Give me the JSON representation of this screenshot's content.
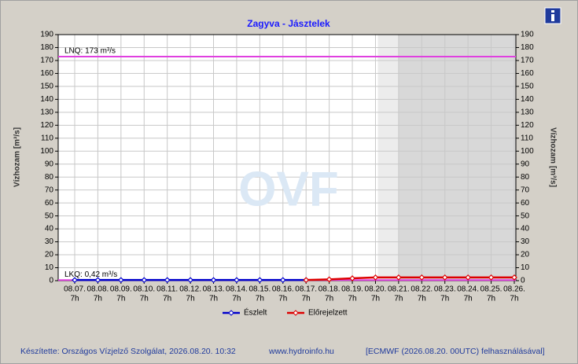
{
  "chart_data": {
    "type": "line",
    "title": "Zagyva - Jásztelek",
    "ylabel": "Vízhozam [m³/s]",
    "y2label": "Vízhozam [m³/s]",
    "categories": [
      [
        "08.07.",
        "7h"
      ],
      [
        "08.08.",
        "7h"
      ],
      [
        "08.09.",
        "7h"
      ],
      [
        "08.10.",
        "7h"
      ],
      [
        "08.11.",
        "7h"
      ],
      [
        "08.12.",
        "7h"
      ],
      [
        "08.13.",
        "7h"
      ],
      [
        "08.14.",
        "7h"
      ],
      [
        "08.15.",
        "7h"
      ],
      [
        "08.16.",
        "7h"
      ],
      [
        "08.17.",
        "7h"
      ],
      [
        "08.18.",
        "7h"
      ],
      [
        "08.19.",
        "7h"
      ],
      [
        "08.20.",
        "7h"
      ],
      [
        "08.21.",
        "7h"
      ],
      [
        "08.22.",
        "7h"
      ],
      [
        "08.23.",
        "7h"
      ],
      [
        "08.24.",
        "7h"
      ],
      [
        "08.25.",
        "7h"
      ],
      [
        "08.26.",
        "7h"
      ]
    ],
    "series": [
      {
        "name": "Észlelt",
        "color": "#0000cc",
        "values": [
          0.5,
          0.5,
          0.5,
          0.5,
          0.5,
          0.5,
          0.5,
          0.5,
          0.5,
          0.5,
          0.5,
          null,
          null,
          null,
          null,
          null,
          null,
          null,
          null,
          null
        ]
      },
      {
        "name": "Előrejelzett",
        "color": "#dd0000",
        "values": [
          null,
          null,
          null,
          null,
          null,
          null,
          null,
          null,
          null,
          null,
          0.5,
          1,
          1.8,
          2.5,
          2.5,
          2.5,
          2.5,
          2.5,
          2.5,
          2.5
        ]
      }
    ],
    "reference_lines": [
      {
        "label": "LNQ: 173 m³/s",
        "value": 173,
        "color": "#e040e0"
      },
      {
        "label": "LKQ: 0,42 m³/s",
        "value": 0.42,
        "color": "#e040e0"
      }
    ],
    "ylim": [
      0,
      190
    ],
    "yticks": [
      0,
      10,
      20,
      30,
      40,
      50,
      60,
      70,
      80,
      90,
      100,
      110,
      120,
      130,
      140,
      150,
      160,
      170,
      180,
      190
    ],
    "y2lim": [
      0,
      190
    ],
    "y2ticks": [
      0,
      10,
      20,
      30,
      40,
      50,
      60,
      70,
      80,
      90,
      100,
      110,
      120,
      130,
      140,
      150,
      160,
      170,
      180,
      190
    ],
    "grid": true,
    "watermark": "OVF",
    "footer": [
      "Készítette: Országos Vízjelző Szolgálat, 2026.08.20. 10:32",
      "www.hydroinfo.hu",
      "[ECMWF (2026.08.20. 00UTC) felhasználásával]"
    ]
  }
}
